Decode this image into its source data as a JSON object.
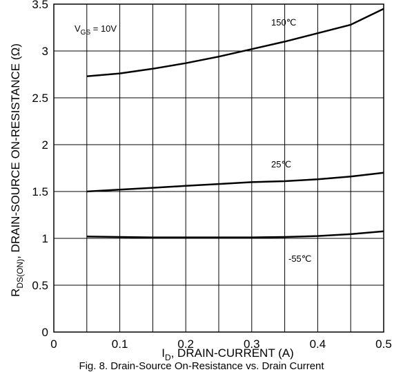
{
  "chart_data": {
    "type": "line",
    "xlabel_main": "I",
    "xlabel_sub": "D",
    "xlabel_rest": ", DRAIN-CURRENT (A)",
    "ylabel_main": "R",
    "ylabel_sub": "DS(ON)",
    "ylabel_rest": ", DRAIN-SOURCE ON-RESISTANCE (Ω)",
    "xlim": [
      0,
      0.5
    ],
    "ylim": [
      0,
      3.5
    ],
    "xticks": [
      0,
      0.1,
      0.2,
      0.3,
      0.4,
      0.5
    ],
    "xtick_labels": [
      "0",
      "0.1",
      "0.2",
      "0.3",
      "0.4",
      "0.5"
    ],
    "yticks": [
      0,
      0.5,
      1,
      1.5,
      2,
      2.5,
      3,
      3.5
    ],
    "ytick_labels": [
      "0",
      "0.5",
      "1",
      "1.5",
      "2",
      "2.5",
      "3",
      "3.5"
    ],
    "grid": true,
    "annotation": {
      "main": "V",
      "sub": "GS",
      "rest": " = 10V"
    },
    "series": [
      {
        "name": "150℃",
        "x": [
          0.05,
          0.1,
          0.15,
          0.2,
          0.25,
          0.3,
          0.35,
          0.4,
          0.45,
          0.5
        ],
        "y": [
          2.73,
          2.76,
          2.81,
          2.87,
          2.94,
          3.02,
          3.1,
          3.19,
          3.28,
          3.45
        ]
      },
      {
        "name": "25℃",
        "x": [
          0.05,
          0.1,
          0.15,
          0.2,
          0.25,
          0.3,
          0.35,
          0.4,
          0.45,
          0.5
        ],
        "y": [
          1.5,
          1.52,
          1.54,
          1.56,
          1.58,
          1.6,
          1.61,
          1.63,
          1.66,
          1.7
        ]
      },
      {
        "name": "-55℃",
        "x": [
          0.05,
          0.1,
          0.15,
          0.2,
          0.25,
          0.3,
          0.35,
          0.4,
          0.45,
          0.5
        ],
        "y": [
          1.02,
          1.015,
          1.01,
          1.01,
          1.01,
          1.01,
          1.015,
          1.025,
          1.045,
          1.075
        ]
      }
    ]
  },
  "caption": "Fig. 8. Drain-Source On-Resistance vs. Drain Current"
}
